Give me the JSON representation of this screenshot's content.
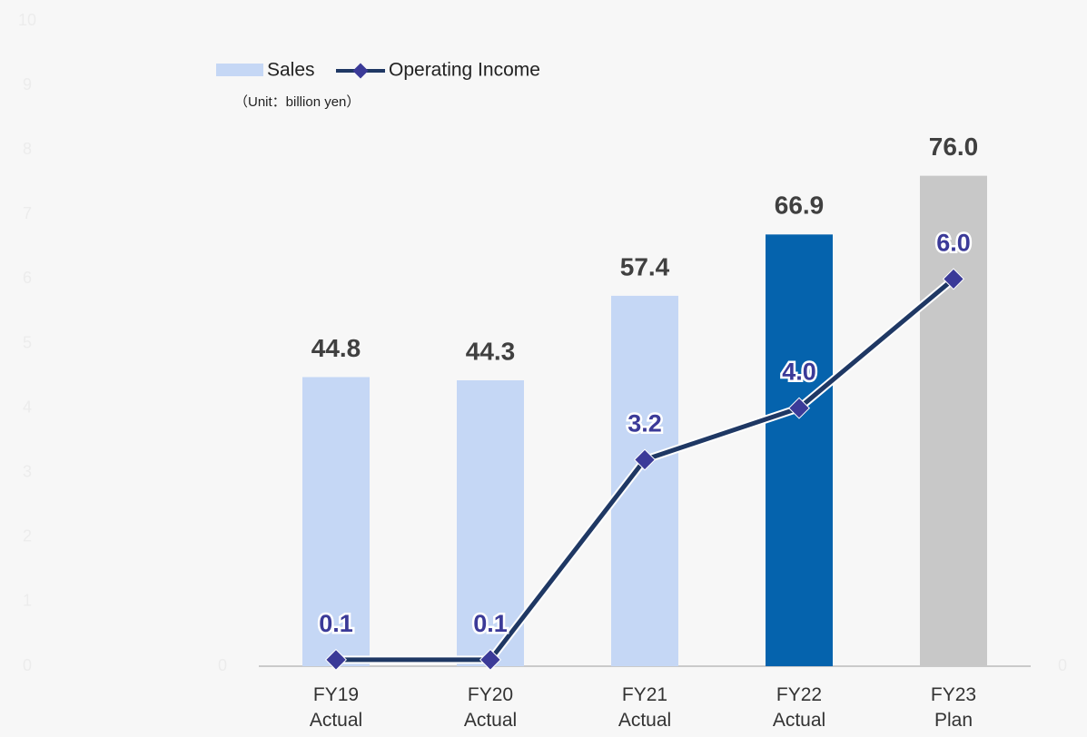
{
  "chart_data": {
    "type": "bar",
    "note": "（Unit：billion yen）",
    "categories": [
      "FY19\nActual",
      "FY20\nActual",
      "FY21\nActual",
      "FY22\nActual",
      "FY23\nPlan"
    ],
    "series": [
      {
        "name": "Sales",
        "type": "bar",
        "axis": "y2",
        "color": "#c5d7f5",
        "colors": [
          "#c5d7f5",
          "#c5d7f5",
          "#c5d7f5",
          "#0563ad",
          "#c8c8c8"
        ],
        "values": [
          44.8,
          44.3,
          57.4,
          66.9,
          76.0
        ],
        "value_labels": [
          "44.8",
          "44.3",
          "57.4",
          "66.9",
          "76.0"
        ]
      },
      {
        "name": "Operating Income",
        "type": "line",
        "color": "#1f3864",
        "marker_color": "#3b3a98",
        "values": [
          0.1,
          0.1,
          3.2,
          4.0,
          6.0
        ],
        "value_labels": [
          "0.1",
          "0.1",
          "3.2",
          "4.0",
          "6.0"
        ]
      }
    ],
    "ylim": [
      0,
      10
    ],
    "yticks": [
      0,
      1,
      2,
      3,
      4,
      5,
      6,
      7,
      8,
      9,
      10
    ],
    "y2lim": [
      0,
      100
    ],
    "y2ticks": [
      0
    ],
    "legend": "top-left"
  }
}
